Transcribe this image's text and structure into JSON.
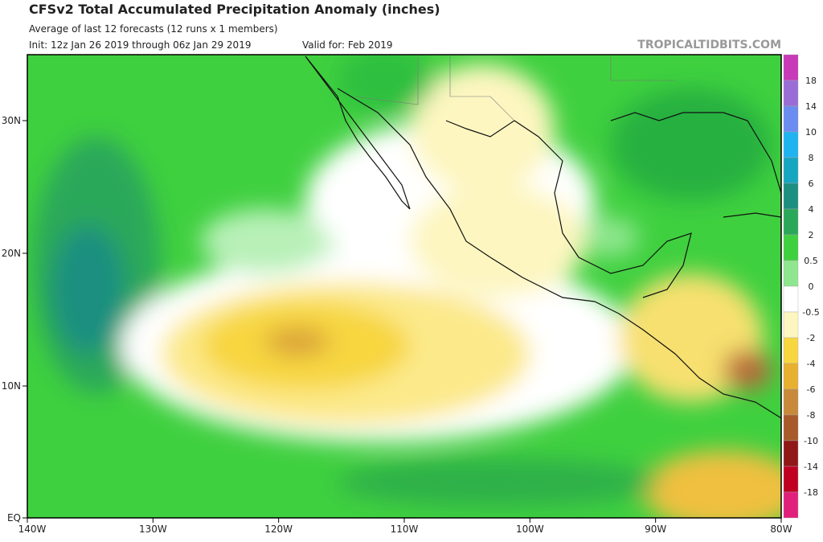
{
  "header": {
    "title": "CFSv2 Total Accumulated Precipitation Anomaly (inches)",
    "subtitle": "Average of last 12 forecasts (12 runs x 1 members)",
    "init": "Init: 12z Jan 26 2019 through 06z Jan 29 2019",
    "valid": "Valid for: Feb 2019",
    "source": "TROPICALTIDBITS.COM"
  },
  "map": {
    "lat_labels": [
      "30N",
      "20N",
      "10N",
      "EQ"
    ],
    "lon_labels": [
      "140W",
      "130W",
      "120W",
      "110W",
      "100W",
      "90W",
      "80W"
    ]
  },
  "legend": {
    "labels": [
      "18",
      "14",
      "10",
      "8",
      "6",
      "4",
      "2",
      "0.5",
      "0",
      "-0.5",
      "-2",
      "-4",
      "-6",
      "-8",
      "-10",
      "-14",
      "-18"
    ]
  }
}
